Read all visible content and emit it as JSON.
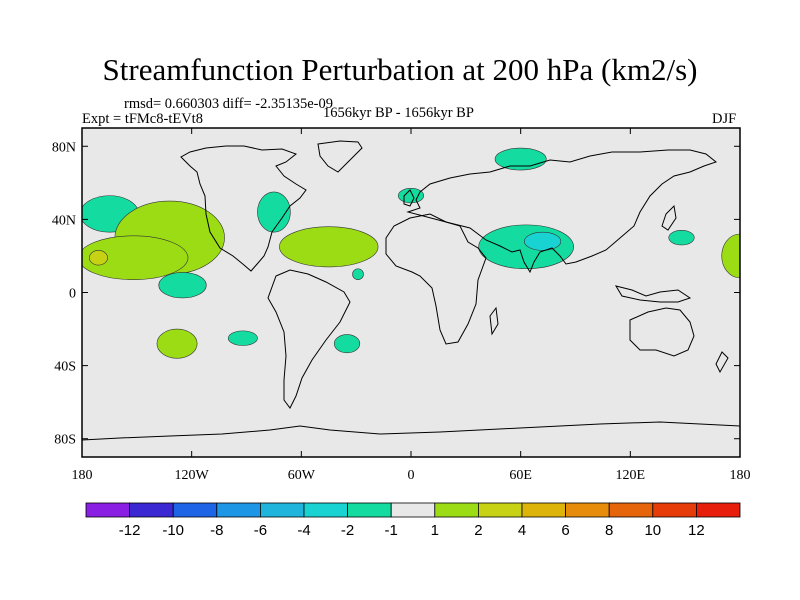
{
  "title": "Streamfunction Perturbation at 200 hPa (km2/s)",
  "stats": "rmsd= 0.660303 diff= -2.35135e-09",
  "experiment": "Expt = tFMc8-tEVt8",
  "period": "1656kyr BP - 1656kyr BP",
  "season": "DJF",
  "map": {
    "lon_range": [
      -180,
      180
    ],
    "lat_range": [
      -90,
      90
    ],
    "background_color": "#e8e8e8",
    "coastline_color": "#000000",
    "lat_ticks": [
      {
        "value": 80,
        "label": "80N"
      },
      {
        "value": 40,
        "label": "40N"
      },
      {
        "value": 0,
        "label": "0"
      },
      {
        "value": -40,
        "label": "40S"
      },
      {
        "value": -80,
        "label": "80S"
      }
    ],
    "lon_ticks": [
      {
        "value": -180,
        "label": "180"
      },
      {
        "value": -120,
        "label": "120W"
      },
      {
        "value": -60,
        "label": "60W"
      },
      {
        "value": 0,
        "label": "0"
      },
      {
        "value": 60,
        "label": "60E"
      },
      {
        "value": 120,
        "label": "120E"
      },
      {
        "value": 180,
        "label": "180"
      }
    ]
  },
  "colorbar": {
    "colors": [
      "#8b1ee3",
      "#3c28d2",
      "#1e64e6",
      "#1e96e6",
      "#1eb4dc",
      "#19d2d2",
      "#14dca0",
      "#e8e8e8",
      "#9bdc14",
      "#c8d214",
      "#dcb40a",
      "#e68c0a",
      "#e6640a",
      "#e63c0a",
      "#e61e0a"
    ],
    "labels": [
      "-12",
      "-10",
      "-8",
      "-6",
      "-4",
      "-2",
      "-1",
      "1",
      "2",
      "4",
      "6",
      "8",
      "10",
      "12"
    ]
  },
  "chart_data": {
    "type": "filled_contour_map",
    "variable": "Streamfunction Perturbation at 200 hPa (km2/s)",
    "units": "km2/s",
    "contour_levels": [
      -12,
      -10,
      -8,
      -6,
      -4,
      -2,
      -1,
      1,
      2,
      4,
      6,
      8,
      10,
      12
    ],
    "regions": [
      {
        "name": "north-pacific-negative",
        "lon": -165,
        "lat": 43,
        "rlon": 16,
        "rlat": 10,
        "bin": "-2 to -1"
      },
      {
        "name": "north-america-positive",
        "lon": -132,
        "lat": 30,
        "rlon": 30,
        "rlat": 20,
        "bin": "1 to 2"
      },
      {
        "name": "hawaii-positive",
        "lon": -152,
        "lat": 19,
        "rlon": 30,
        "rlat": 12,
        "bin": "1 to 2"
      },
      {
        "name": "hawaii-core-positive",
        "lon": -171,
        "lat": 19,
        "rlon": 5,
        "rlat": 4,
        "bin": "2 to 4"
      },
      {
        "name": "eastern-us-negative",
        "lon": -75,
        "lat": 44,
        "rlon": 9,
        "rlat": 11,
        "bin": "-2 to -1"
      },
      {
        "name": "caribbean-atlantic-positive",
        "lon": -45,
        "lat": 25,
        "rlon": 27,
        "rlat": 11,
        "bin": "1 to 2"
      },
      {
        "name": "tropical-pacific-negative",
        "lon": -125,
        "lat": 4,
        "rlon": 13,
        "rlat": 7,
        "bin": "-2 to -1"
      },
      {
        "name": "south-pacific-positive",
        "lon": -128,
        "lat": -28,
        "rlon": 11,
        "rlat": 8,
        "bin": "1 to 2"
      },
      {
        "name": "south-america-west-negative",
        "lon": -92,
        "lat": -25,
        "rlon": 8,
        "rlat": 4,
        "bin": "-2 to -1"
      },
      {
        "name": "south-atlantic-negative",
        "lon": -35,
        "lat": -28,
        "rlon": 7,
        "rlat": 5,
        "bin": "-2 to -1"
      },
      {
        "name": "equatorial-atlantic-negative",
        "lon": -29,
        "lat": 10,
        "rlon": 3,
        "rlat": 3,
        "bin": "-2 to -1"
      },
      {
        "name": "siberia-negative",
        "lon": 60,
        "lat": 73,
        "rlon": 14,
        "rlat": 6,
        "bin": "-2 to -1"
      },
      {
        "name": "western-europe-negative",
        "lon": 0,
        "lat": 53,
        "rlon": 7,
        "rlat": 4,
        "bin": "-2 to -1"
      },
      {
        "name": "arabia-india-negative",
        "lon": 63,
        "lat": 25,
        "rlon": 26,
        "rlat": 12,
        "bin": "-2 to -1"
      },
      {
        "name": "arabia-india-core",
        "lon": 72,
        "lat": 28,
        "rlon": 10,
        "rlat": 5,
        "bin": "-4 to -2"
      },
      {
        "name": "west-pacific-negative",
        "lon": 148,
        "lat": 30,
        "rlon": 7,
        "rlat": 4,
        "bin": "-2 to -1"
      },
      {
        "name": "dateline-positive",
        "lon": 180,
        "lat": 20,
        "rlon": 10,
        "rlat": 12,
        "bin": "1 to 2"
      }
    ]
  }
}
